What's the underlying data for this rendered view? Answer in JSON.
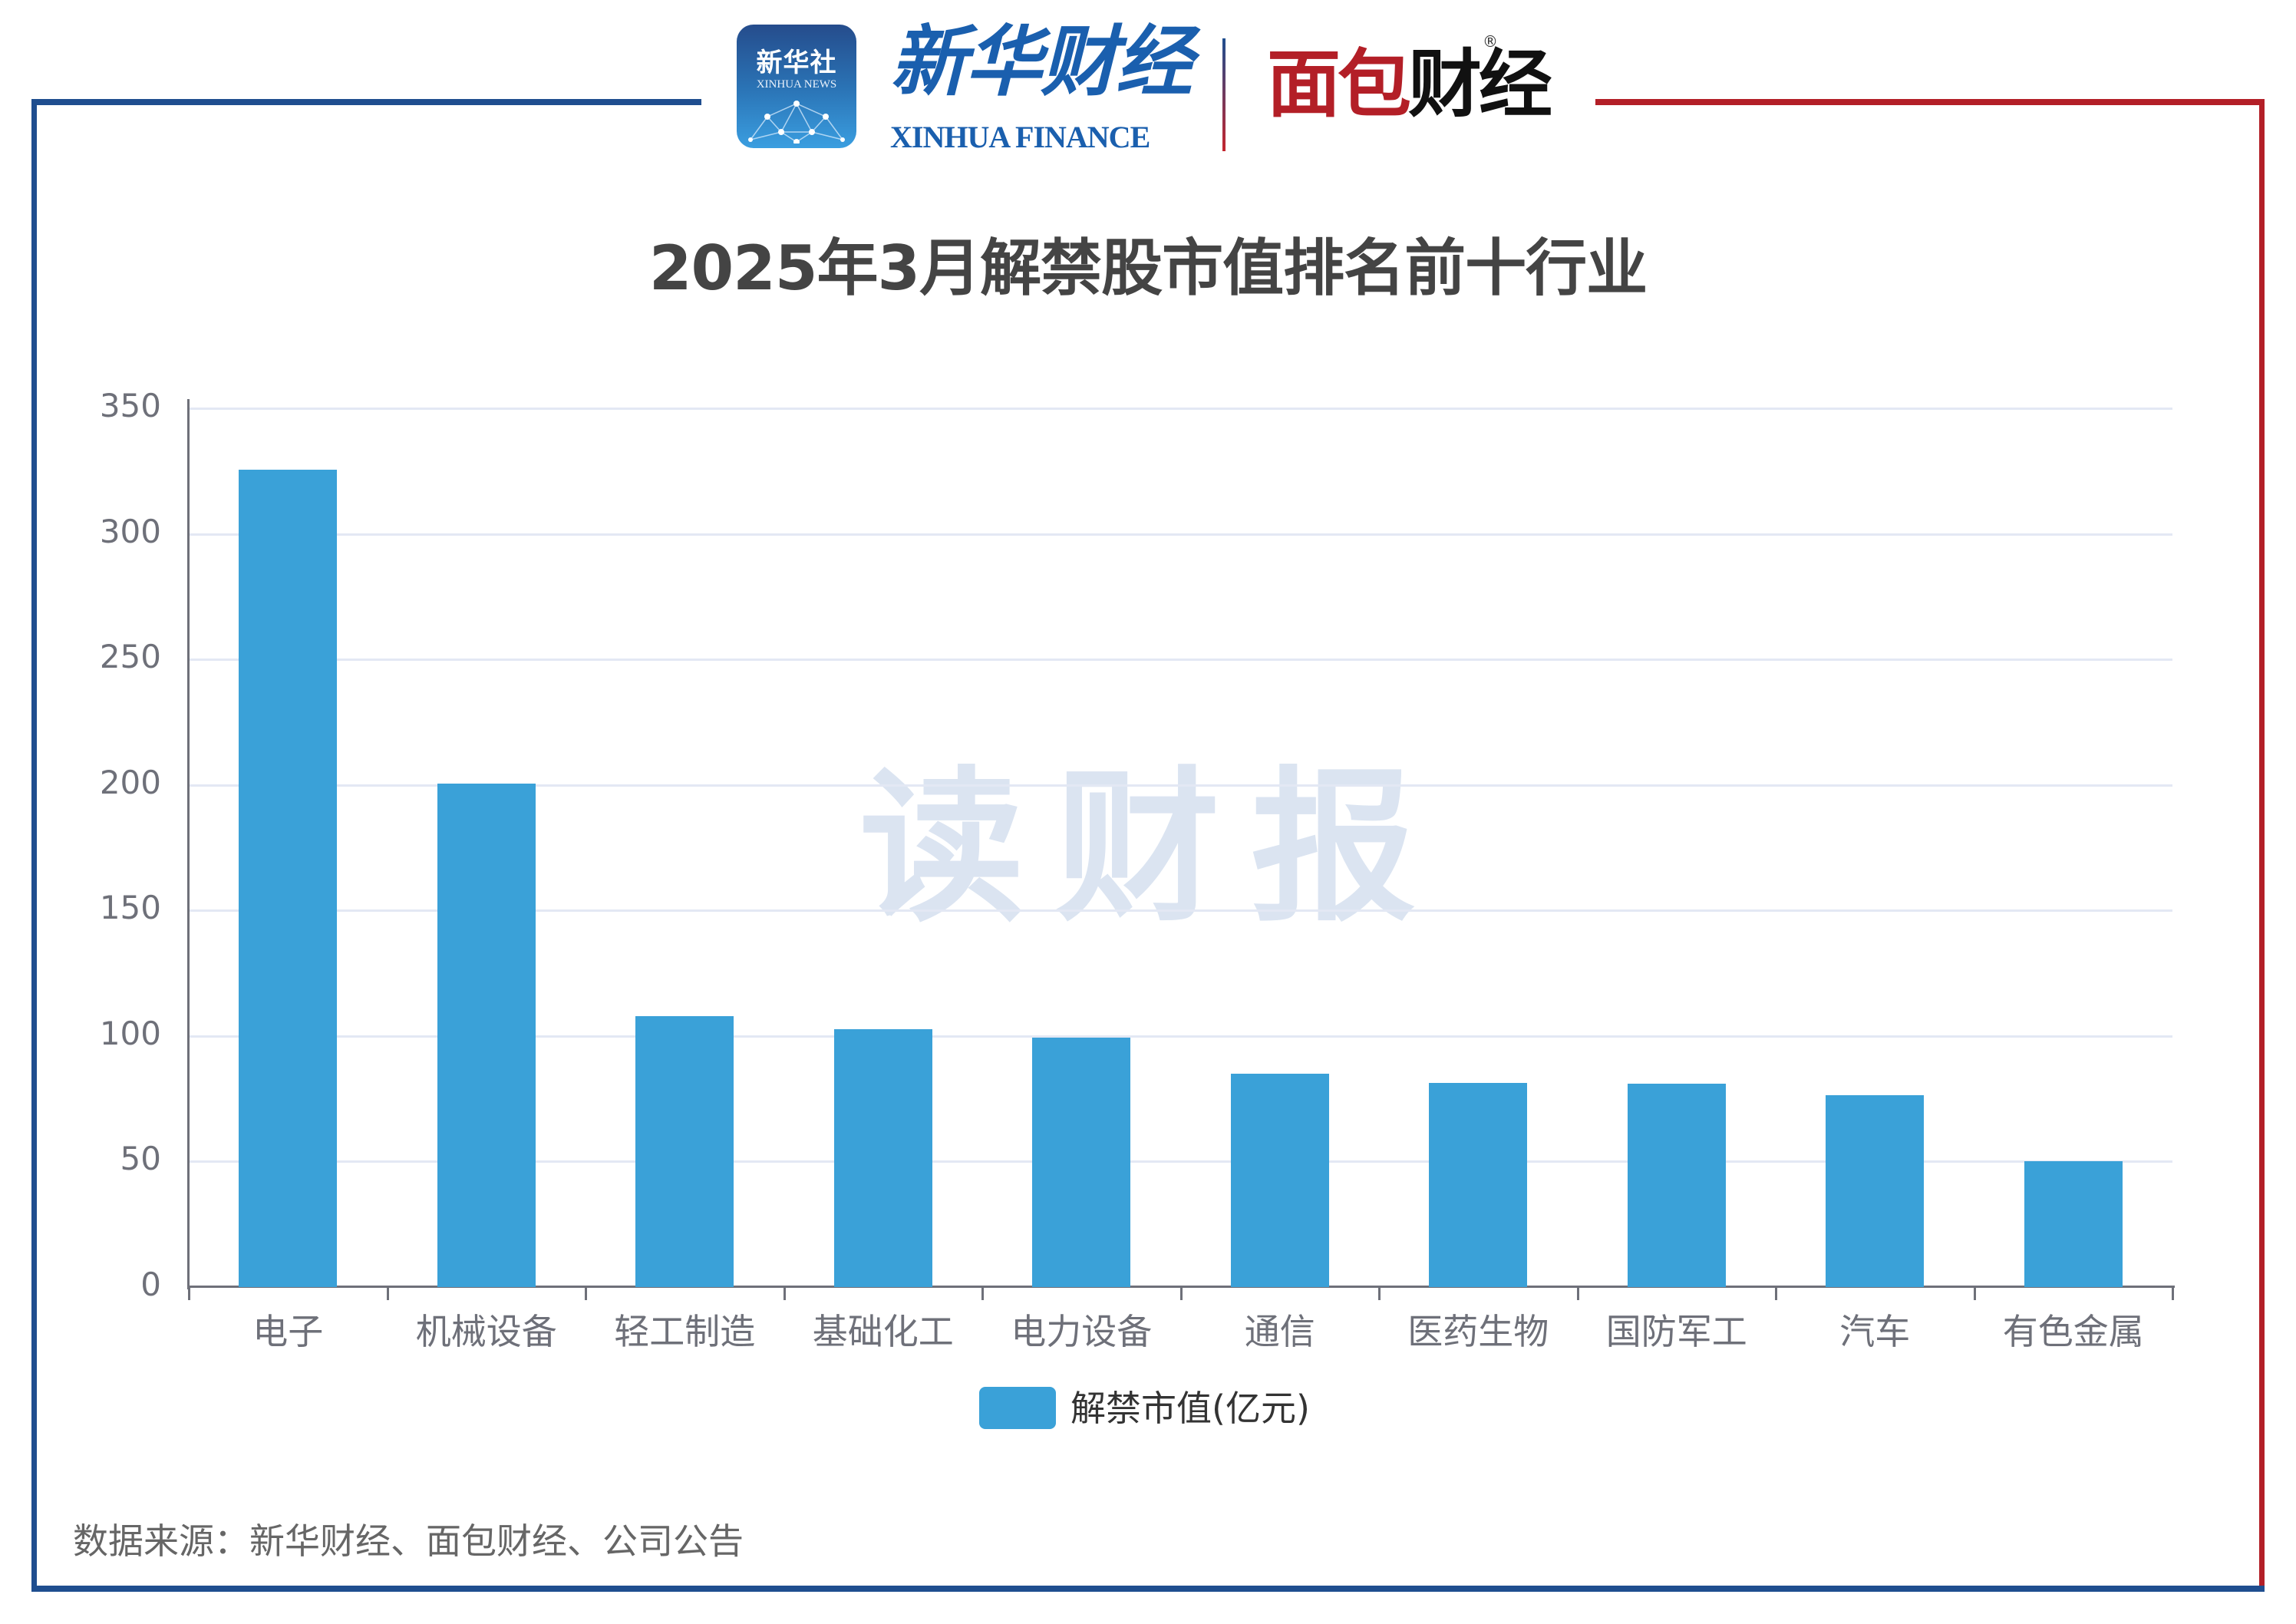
{
  "header": {
    "xinhua_icon_cn": "新华社",
    "xinhua_icon_en": "XINHUA NEWS",
    "xinhua_finance_cn": "新华财经",
    "xinhua_finance_en": "XINHUA FINANCE",
    "mianbao_red": "面包",
    "mianbao_black": "财经",
    "registered_mark": "®"
  },
  "colors": {
    "bar": "#3aa1d8",
    "frame_blue": "#1f4e8f",
    "frame_red": "#b31f27",
    "grid": "#e3e8f4"
  },
  "watermark": "读财报",
  "legend": {
    "label": "解禁市值(亿元)"
  },
  "source": "数据来源：新华财经、面包财经、公司公告",
  "chart_data": {
    "type": "bar",
    "title": "2025年3月解禁股市值排名前十行业",
    "xlabel": "",
    "ylabel": "",
    "ylim": [
      0,
      350
    ],
    "yticks": [
      0,
      50,
      100,
      150,
      200,
      250,
      300,
      350
    ],
    "grid": true,
    "legend_position": "bottom",
    "categories": [
      "电子",
      "机械设备",
      "轻工制造",
      "基础化工",
      "电力设备",
      "通信",
      "医药生物",
      "国防军工",
      "汽车",
      "有色金属"
    ],
    "series": [
      {
        "name": "解禁市值(亿元)",
        "values": [
          325.5,
          200.6,
          107.9,
          102.8,
          99.3,
          84.9,
          81.2,
          81.0,
          76.4,
          50.1
        ]
      }
    ]
  }
}
